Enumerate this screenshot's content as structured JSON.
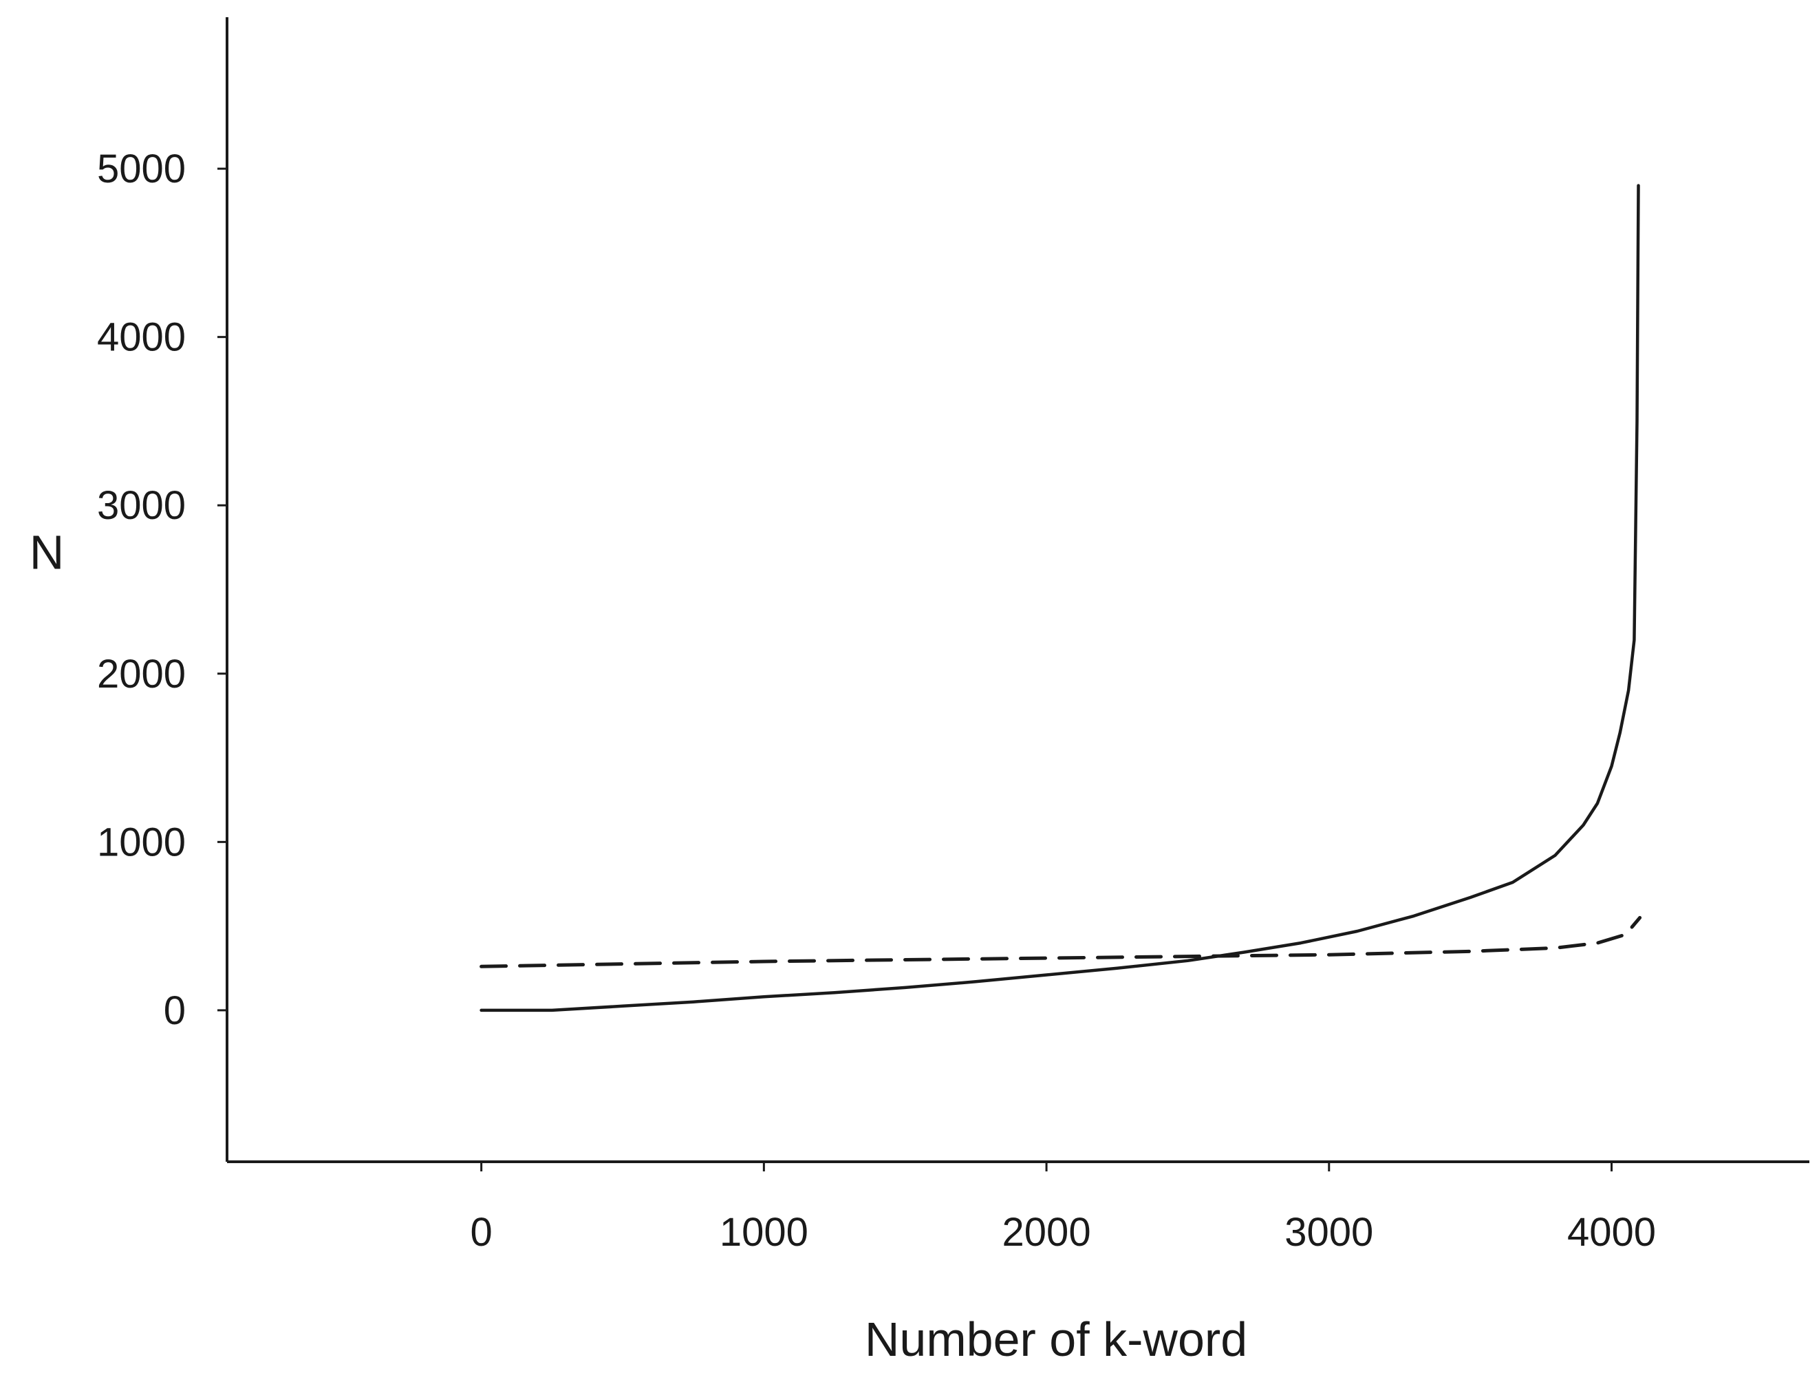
{
  "chart_data": {
    "type": "line",
    "title": "",
    "xlabel": "Number of k-word",
    "ylabel": "N",
    "xlim": [
      -900,
      4700
    ],
    "ylim": [
      -900,
      5900
    ],
    "x_ticks": [
      0,
      1000,
      2000,
      3000,
      4000
    ],
    "y_ticks": [
      0,
      1000,
      2000,
      3000,
      4000,
      5000
    ],
    "x_tick_labels": [
      "0",
      "1000",
      "2000",
      "3000",
      "4000"
    ],
    "y_tick_labels": [
      "0",
      "1000",
      "2000",
      "3000",
      "4000",
      "5000"
    ],
    "grid": false,
    "legend": false,
    "series": [
      {
        "style": "solid",
        "color": "#1a1a1a",
        "x": [
          0,
          250,
          500,
          750,
          1000,
          1250,
          1500,
          1750,
          2000,
          2250,
          2500,
          2700,
          2900,
          3100,
          3300,
          3500,
          3650,
          3800,
          3900,
          3950,
          4000,
          4030,
          4060,
          4080,
          4090,
          4095
        ],
        "y": [
          0,
          0,
          25,
          50,
          80,
          105,
          135,
          170,
          210,
          250,
          295,
          345,
          400,
          470,
          560,
          670,
          760,
          920,
          1100,
          1230,
          1450,
          1650,
          1900,
          2200,
          3500,
          4900
        ]
      },
      {
        "style": "dashed",
        "color": "#1a1a1a",
        "x": [
          0,
          500,
          1000,
          1500,
          2000,
          2500,
          3000,
          3500,
          3800,
          3950,
          4050,
          4100
        ],
        "y": [
          260,
          275,
          290,
          300,
          310,
          320,
          330,
          350,
          370,
          400,
          450,
          550
        ]
      }
    ]
  }
}
